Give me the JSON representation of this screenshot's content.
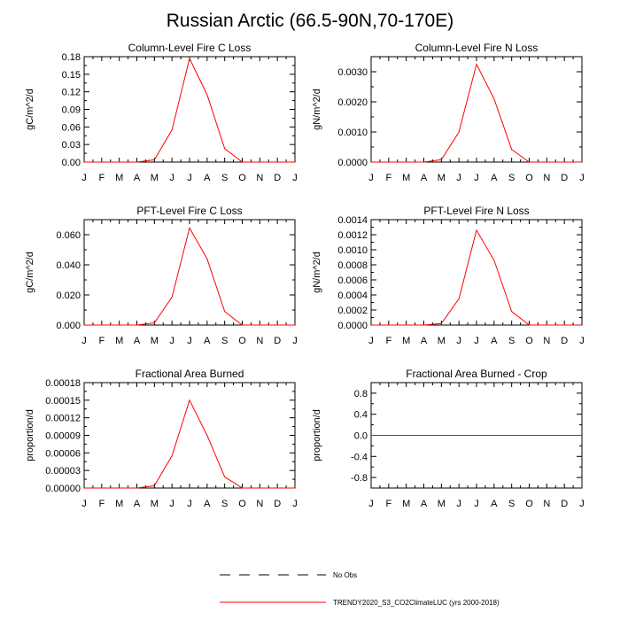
{
  "title": "Russian Arctic (66.5-90N,70-170E)",
  "colors": {
    "model": "#ff0000",
    "obs": "#000000",
    "axis": "#000000"
  },
  "legend": {
    "obs_label": "No Obs",
    "model_label": "TRENDY2020_S3_CO2ClimateLUC (yrs 2000-2018)"
  },
  "chart_data": [
    {
      "type": "line",
      "title": "Column-Level Fire C Loss",
      "ylabel": "gC/m^2/d",
      "categories": [
        "J",
        "F",
        "M",
        "A",
        "M",
        "J",
        "J",
        "A",
        "S",
        "O",
        "N",
        "D",
        "J"
      ],
      "yticks": [
        "0.00",
        "0.03",
        "0.06",
        "0.09",
        "0.12",
        "0.15",
        "0.18"
      ],
      "ylim": [
        0,
        0.18
      ],
      "series": [
        {
          "name": "TRENDY2020_S3_CO2ClimateLUC (yrs 2000-2018)",
          "values": [
            0,
            0,
            0,
            0,
            0.004,
            0.055,
            0.177,
            0.115,
            0.023,
            0,
            0,
            0,
            0
          ]
        }
      ]
    },
    {
      "type": "line",
      "title": "Column-Level Fire N Loss",
      "ylabel": "gN/m^2/d",
      "categories": [
        "J",
        "F",
        "M",
        "A",
        "M",
        "J",
        "J",
        "A",
        "S",
        "O",
        "N",
        "D",
        "J"
      ],
      "yticks": [
        "0.0000",
        "0.0010",
        "0.0020",
        "0.0030"
      ],
      "ylim": [
        0,
        0.0035
      ],
      "series": [
        {
          "name": "TRENDY2020_S3_CO2ClimateLUC (yrs 2000-2018)",
          "values": [
            0,
            0,
            0,
            0,
            8e-05,
            0.001,
            0.00325,
            0.0021,
            0.00042,
            0,
            0,
            0,
            0
          ]
        }
      ]
    },
    {
      "type": "line",
      "title": "PFT-Level Fire C Loss",
      "ylabel": "gC/m^2/d",
      "categories": [
        "J",
        "F",
        "M",
        "A",
        "M",
        "J",
        "J",
        "A",
        "S",
        "O",
        "N",
        "D",
        "J"
      ],
      "yticks": [
        "0.000",
        "0.020",
        "0.040",
        "0.060"
      ],
      "ylim": [
        0,
        0.07
      ],
      "series": [
        {
          "name": "TRENDY2020_S3_CO2ClimateLUC (yrs 2000-2018)",
          "values": [
            0,
            0,
            0,
            0,
            0.0015,
            0.0185,
            0.0645,
            0.044,
            0.009,
            0,
            0,
            0,
            0
          ]
        }
      ]
    },
    {
      "type": "line",
      "title": "PFT-Level Fire N Loss",
      "ylabel": "gN/m^2/d",
      "categories": [
        "J",
        "F",
        "M",
        "A",
        "M",
        "J",
        "J",
        "A",
        "S",
        "O",
        "N",
        "D",
        "J"
      ],
      "yticks": [
        "0.0000",
        "0.0002",
        "0.0004",
        "0.0006",
        "0.0008",
        "0.0010",
        "0.0012",
        "0.0014"
      ],
      "ylim": [
        0,
        0.0014
      ],
      "series": [
        {
          "name": "TRENDY2020_S3_CO2ClimateLUC (yrs 2000-2018)",
          "values": [
            0,
            0,
            0,
            0,
            2e-05,
            0.00035,
            0.00126,
            0.00086,
            0.00018,
            0,
            0,
            0,
            0
          ]
        }
      ]
    },
    {
      "type": "line",
      "title": "Fractional Area Burned",
      "ylabel": "proportion/d",
      "categories": [
        "J",
        "F",
        "M",
        "A",
        "M",
        "J",
        "J",
        "A",
        "S",
        "O",
        "N",
        "D",
        "J"
      ],
      "yticks": [
        "0.00000",
        "0.00003",
        "0.00006",
        "0.00009",
        "0.00012",
        "0.00015",
        "0.00018"
      ],
      "ylim": [
        0,
        0.00018
      ],
      "series": [
        {
          "name": "TRENDY2020_S3_CO2ClimateLUC (yrs 2000-2018)",
          "values": [
            0,
            0,
            0,
            0,
            4e-06,
            5.5e-05,
            0.00015,
            9e-05,
            1.9e-05,
            0,
            0,
            0,
            0
          ]
        }
      ]
    },
    {
      "type": "line",
      "title": "Fractional Area Burned - Crop",
      "ylabel": "proportion/d",
      "categories": [
        "J",
        "F",
        "M",
        "A",
        "M",
        "J",
        "J",
        "A",
        "S",
        "O",
        "N",
        "D",
        "J"
      ],
      "yticks": [
        "-0.8",
        "-0.4",
        "0.0",
        "0.4",
        "0.8"
      ],
      "ylim": [
        -1,
        1
      ],
      "series": [
        {
          "name": "TRENDY2020_S3_CO2ClimateLUC (yrs 2000-2018)",
          "values": [
            0,
            0,
            0,
            0,
            0,
            0,
            0,
            0,
            0,
            0,
            0,
            0,
            0
          ]
        }
      ]
    }
  ]
}
